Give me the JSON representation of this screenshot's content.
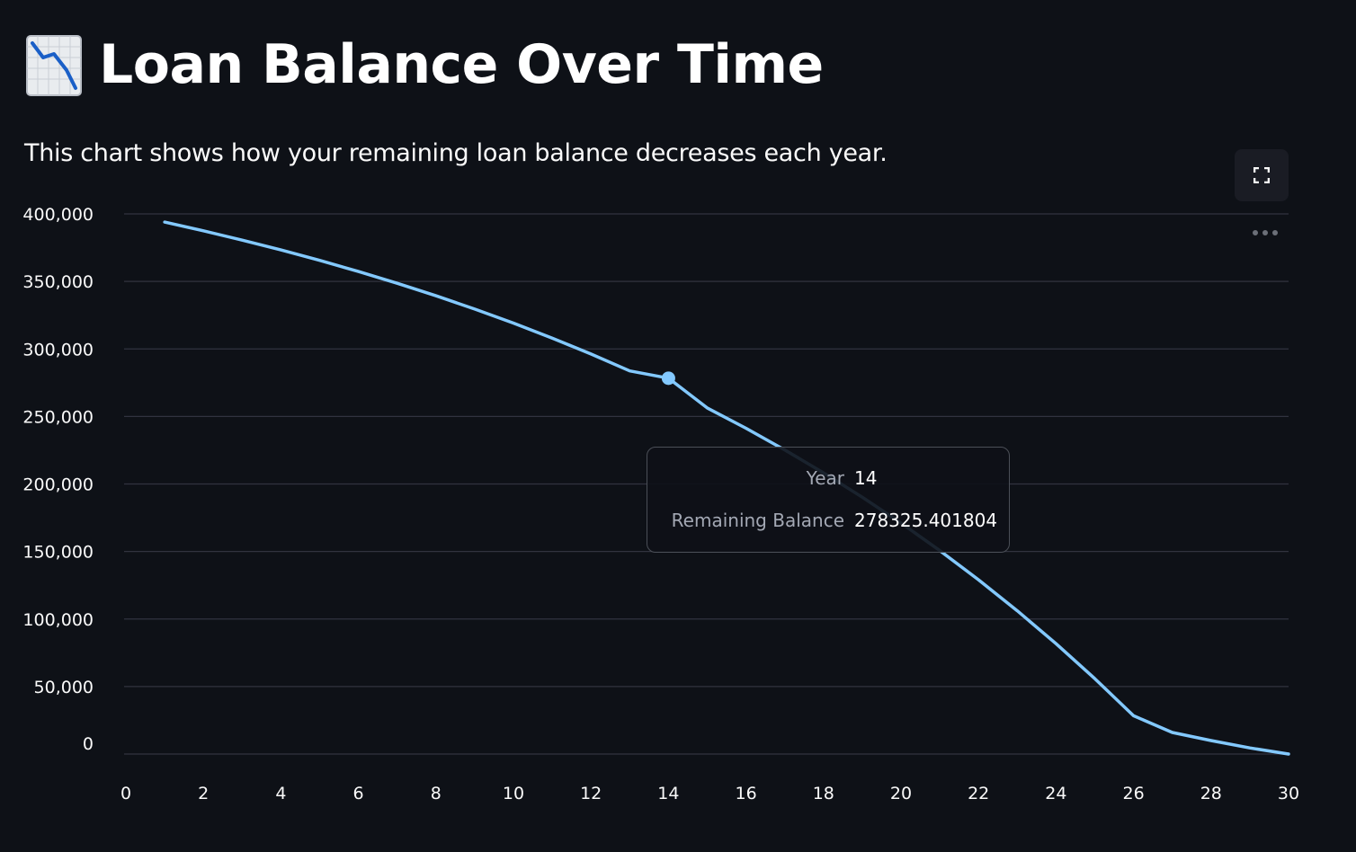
{
  "header": {
    "title": "Loan Balance Over Time",
    "title_icon": "chart-decreasing-icon",
    "subtitle": "This chart shows how your remaining loan balance decreases each year."
  },
  "toolbar": {
    "fullscreen_icon": "fullscreen-icon",
    "more_icon": "more-options-icon"
  },
  "colors": {
    "background": "#0e1117",
    "line": "#83c9ff",
    "grid": "#31333f",
    "text": "#fafafa"
  },
  "tooltip": {
    "rows": [
      {
        "key": "Year",
        "value": "14"
      },
      {
        "key": "Remaining Balance",
        "value": "278325.401804"
      }
    ]
  },
  "chart_data": {
    "type": "line",
    "title": "",
    "xlabel": "",
    "ylabel": "",
    "xlim": [
      0,
      30
    ],
    "ylim": [
      0,
      400000
    ],
    "x_ticks": [
      "0",
      "2",
      "4",
      "6",
      "8",
      "10",
      "12",
      "14",
      "16",
      "18",
      "20",
      "22",
      "24",
      "26",
      "28",
      "30"
    ],
    "y_ticks": [
      "0",
      "50,000",
      "100,000",
      "150,000",
      "200,000",
      "250,000",
      "300,000",
      "350,000",
      "400,000"
    ],
    "grid": "horizontal",
    "highlighted_point": {
      "x": 14,
      "y": 278325.401804
    },
    "series": [
      {
        "x": [
          1,
          2,
          3,
          4,
          5,
          6,
          7,
          8,
          9,
          10,
          11,
          12,
          13,
          14,
          15,
          16,
          17,
          18,
          19,
          20,
          21,
          22,
          23,
          24,
          25,
          26,
          27,
          28,
          29,
          30
        ],
        "y": [
          393916,
          387457,
          380598,
          373314,
          365580,
          357367,
          348646,
          339384,
          329549,
          319106,
          308016,
          296239,
          283733,
          278325,
          256318,
          241243,
          225236,
          208238,
          190187,
          171018,
          150663,
          129048,
          106093,
          81718,
          55834,
          28348,
          16000,
          10000,
          4500,
          0
        ]
      }
    ]
  }
}
